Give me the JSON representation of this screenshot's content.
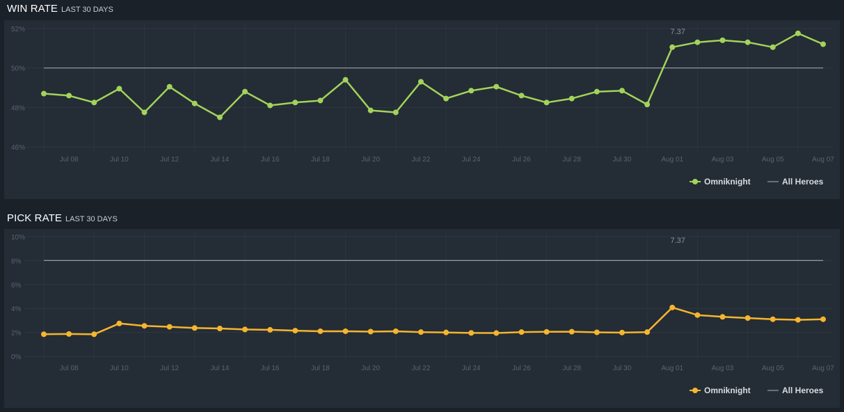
{
  "sections": [
    {
      "title": "WIN RATE",
      "subtitle": "LAST 30 DAYS"
    },
    {
      "title": "PICK RATE",
      "subtitle": "LAST 30 DAYS"
    }
  ],
  "chart_data": [
    {
      "type": "line",
      "title": "WIN RATE",
      "subtitle": "LAST 30 DAYS",
      "categories": [
        "Jul 07",
        "Jul 08",
        "Jul 09",
        "Jul 10",
        "Jul 11",
        "Jul 12",
        "Jul 13",
        "Jul 14",
        "Jul 15",
        "Jul 16",
        "Jul 17",
        "Jul 18",
        "Jul 19",
        "Jul 20",
        "Jul 21",
        "Jul 22",
        "Jul 23",
        "Jul 24",
        "Jul 25",
        "Jul 26",
        "Jul 27",
        "Jul 28",
        "Jul 29",
        "Jul 30",
        "Jul 31",
        "Aug 01",
        "Aug 02",
        "Aug 03",
        "Aug 04",
        "Aug 05",
        "Aug 06",
        "Aug 07"
      ],
      "x_tick_labels": [
        "Jul 08",
        "Jul 10",
        "Jul 12",
        "Jul 14",
        "Jul 16",
        "Jul 18",
        "Jul 20",
        "Jul 22",
        "Jul 24",
        "Jul 26",
        "Jul 28",
        "Jul 30",
        "Aug 01",
        "Aug 03",
        "Aug 05",
        "Aug 07"
      ],
      "y_tick_labels": [
        "52%",
        "50%",
        "48%",
        "46%"
      ],
      "y_ticks": [
        52,
        50,
        48,
        46
      ],
      "ylim": [
        45.9,
        52.1
      ],
      "series": [
        {
          "name": "Omniknight",
          "color": "#a3d35a",
          "values": [
            48.7,
            48.6,
            48.25,
            48.95,
            47.75,
            49.05,
            48.2,
            47.5,
            48.8,
            48.1,
            48.25,
            48.35,
            49.4,
            47.85,
            47.75,
            49.3,
            48.45,
            48.85,
            49.05,
            48.6,
            48.25,
            48.45,
            48.8,
            48.85,
            48.15,
            51.05,
            51.3,
            51.4,
            51.3,
            51.05,
            51.75,
            51.2
          ]
        },
        {
          "name": "All Heroes",
          "color": "#8e969e",
          "values": [
            50,
            50,
            50,
            50,
            50,
            50,
            50,
            50,
            50,
            50,
            50,
            50,
            50,
            50,
            50,
            50,
            50,
            50,
            50,
            50,
            50,
            50,
            50,
            50,
            50,
            50,
            50,
            50,
            50,
            50,
            50,
            50
          ]
        }
      ],
      "annotations": [
        {
          "x": "Aug 01",
          "text": "7.37"
        }
      ],
      "legend": "bottom-right",
      "grid": true
    },
    {
      "type": "line",
      "title": "PICK RATE",
      "subtitle": "LAST 30 DAYS",
      "categories": [
        "Jul 07",
        "Jul 08",
        "Jul 09",
        "Jul 10",
        "Jul 11",
        "Jul 12",
        "Jul 13",
        "Jul 14",
        "Jul 15",
        "Jul 16",
        "Jul 17",
        "Jul 18",
        "Jul 19",
        "Jul 20",
        "Jul 21",
        "Jul 22",
        "Jul 23",
        "Jul 24",
        "Jul 25",
        "Jul 26",
        "Jul 27",
        "Jul 28",
        "Jul 29",
        "Jul 30",
        "Jul 31",
        "Aug 01",
        "Aug 02",
        "Aug 03",
        "Aug 04",
        "Aug 05",
        "Aug 06",
        "Aug 07"
      ],
      "x_tick_labels": [
        "Jul 08",
        "Jul 10",
        "Jul 12",
        "Jul 14",
        "Jul 16",
        "Jul 18",
        "Jul 20",
        "Jul 22",
        "Jul 24",
        "Jul 26",
        "Jul 28",
        "Jul 30",
        "Aug 01",
        "Aug 03",
        "Aug 05",
        "Aug 07"
      ],
      "y_tick_labels": [
        "10%",
        "8%",
        "6%",
        "4%",
        "2%",
        "0%"
      ],
      "y_ticks": [
        10,
        8,
        6,
        4,
        2,
        0
      ],
      "ylim": [
        -0.05,
        10.05
      ],
      "series": [
        {
          "name": "Omniknight",
          "color": "#f5b52e",
          "values": [
            1.85,
            1.87,
            1.85,
            2.75,
            2.55,
            2.47,
            2.37,
            2.33,
            2.25,
            2.22,
            2.15,
            2.1,
            2.1,
            2.07,
            2.1,
            2.03,
            2.0,
            1.96,
            1.95,
            2.03,
            2.05,
            2.06,
            2.01,
            1.99,
            2.03,
            4.08,
            3.45,
            3.3,
            3.2,
            3.1,
            3.05,
            3.1
          ]
        },
        {
          "name": "All Heroes",
          "color": "#8e969e",
          "values": [
            8,
            8,
            8,
            8,
            8,
            8,
            8,
            8,
            8,
            8,
            8,
            8,
            8,
            8,
            8,
            8,
            8,
            8,
            8,
            8,
            8,
            8,
            8,
            8,
            8,
            8,
            8,
            8,
            8,
            8,
            8,
            8
          ]
        }
      ],
      "annotations": [
        {
          "x": "Aug 01",
          "text": "7.37"
        }
      ],
      "legend": "bottom-right",
      "grid": true
    }
  ]
}
